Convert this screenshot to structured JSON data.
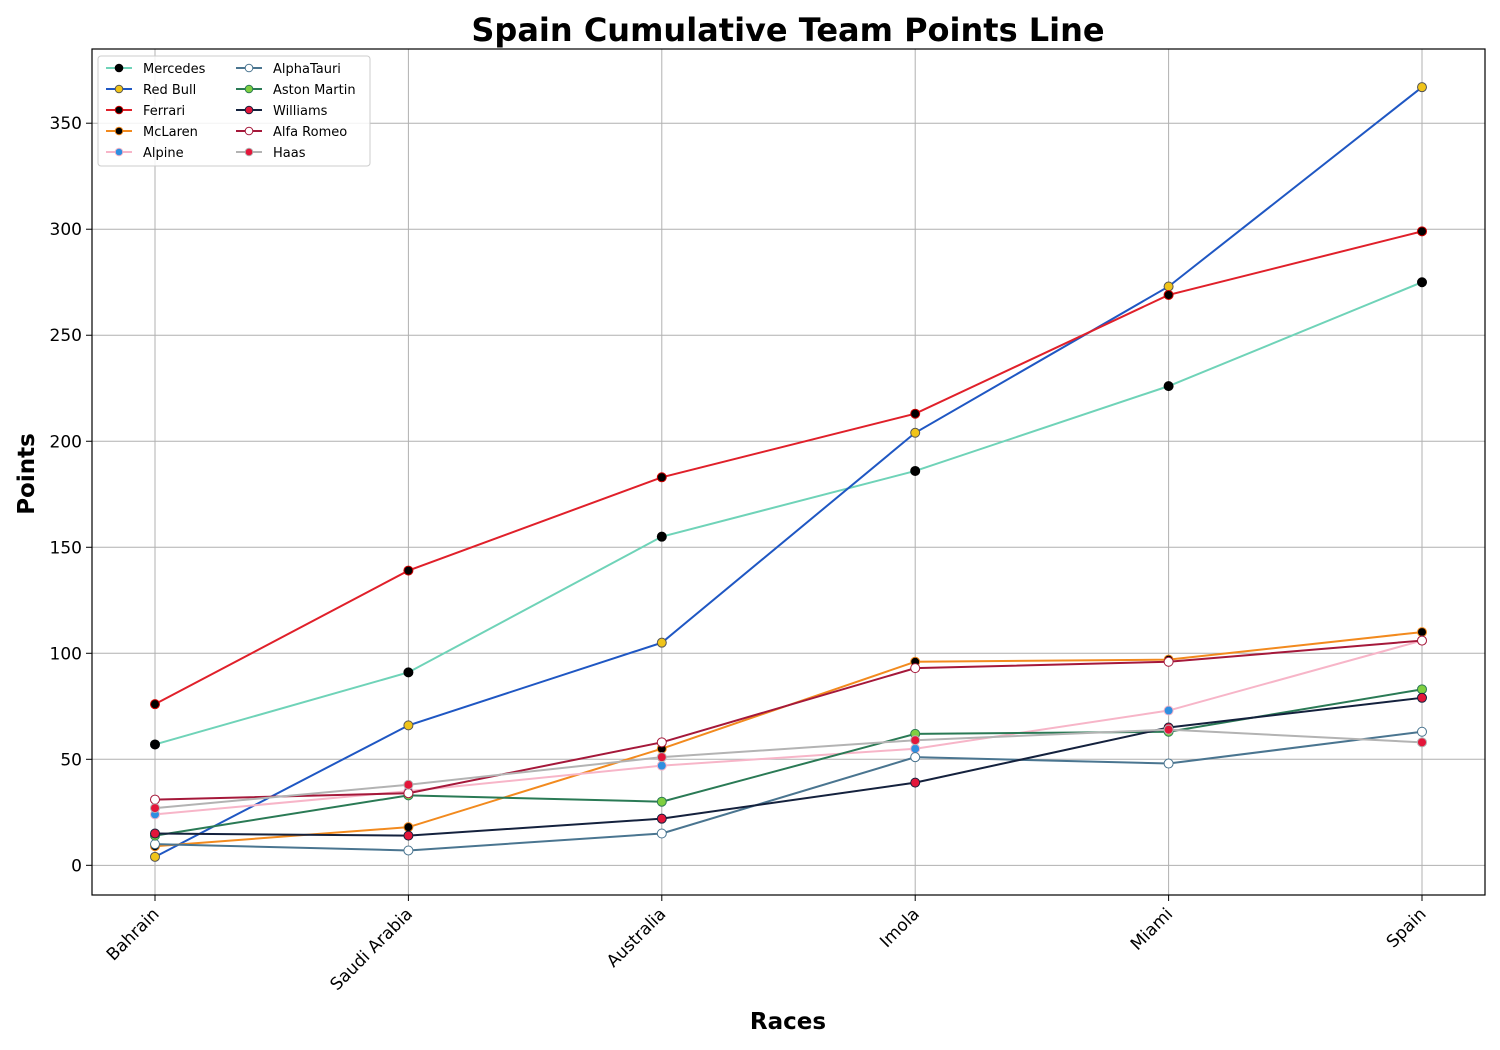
{
  "chart_data": {
    "type": "line",
    "title": "Spain Cumulative Team Points Line",
    "xlabel": "Races",
    "ylabel": "Points",
    "categories": [
      "Bahrain",
      "Saudi Arabia",
      "Australia",
      "Imola",
      "Miami",
      "Spain"
    ],
    "ylim": [
      -14,
      385
    ],
    "yticks": [
      0,
      50,
      100,
      150,
      200,
      250,
      300,
      350
    ],
    "grid": true,
    "legend_position": "top-left",
    "series": [
      {
        "name": "Mercedes",
        "color": "#6fd3b8",
        "marker_fill": "#000000",
        "marker_edge": "#000000",
        "values": [
          57,
          91,
          155,
          186,
          226,
          275
        ]
      },
      {
        "name": "Red Bull",
        "color": "#1f57c3",
        "marker_fill": "#f0c419",
        "marker_edge": "#555555",
        "values": [
          4,
          66,
          105,
          204,
          273,
          367
        ]
      },
      {
        "name": "Ferrari",
        "color": "#e0202a",
        "marker_fill": "#000000",
        "marker_edge": "#cc0000",
        "values": [
          76,
          139,
          183,
          213,
          269,
          299
        ]
      },
      {
        "name": "McLaren",
        "color": "#f28a1e",
        "marker_fill": "#000000",
        "marker_edge": "#f28a1e",
        "values": [
          9,
          18,
          55,
          96,
          97,
          110
        ]
      },
      {
        "name": "Alpine",
        "color": "#f7b5c8",
        "marker_fill": "#2f8fe0",
        "marker_edge": "#f7b5c8",
        "values": [
          24,
          35,
          47,
          55,
          73,
          106
        ]
      },
      {
        "name": "AlphaTauri",
        "color": "#4a7590",
        "marker_fill": "#ffffff",
        "marker_edge": "#4a7590",
        "values": [
          10,
          7,
          15,
          51,
          48,
          63
        ]
      },
      {
        "name": "Aston Martin",
        "color": "#2a7a55",
        "marker_fill": "#7fcf40",
        "marker_edge": "#2a7a55",
        "values": [
          14,
          33,
          30,
          62,
          63,
          83
        ]
      },
      {
        "name": "Williams",
        "color": "#14213d",
        "marker_fill": "#e3163a",
        "marker_edge": "#14213d",
        "values": [
          15,
          14,
          22,
          39,
          65,
          79
        ]
      },
      {
        "name": "Alfa Romeo",
        "color": "#a5183a",
        "marker_fill": "#ffffff",
        "marker_edge": "#a5183a",
        "values": [
          31,
          34,
          58,
          93,
          96,
          106
        ]
      },
      {
        "name": "Haas",
        "color": "#b3b3b3",
        "marker_fill": "#e3163a",
        "marker_edge": "#b3b3b3",
        "values": [
          27,
          38,
          51,
          59,
          64,
          58
        ]
      }
    ]
  }
}
